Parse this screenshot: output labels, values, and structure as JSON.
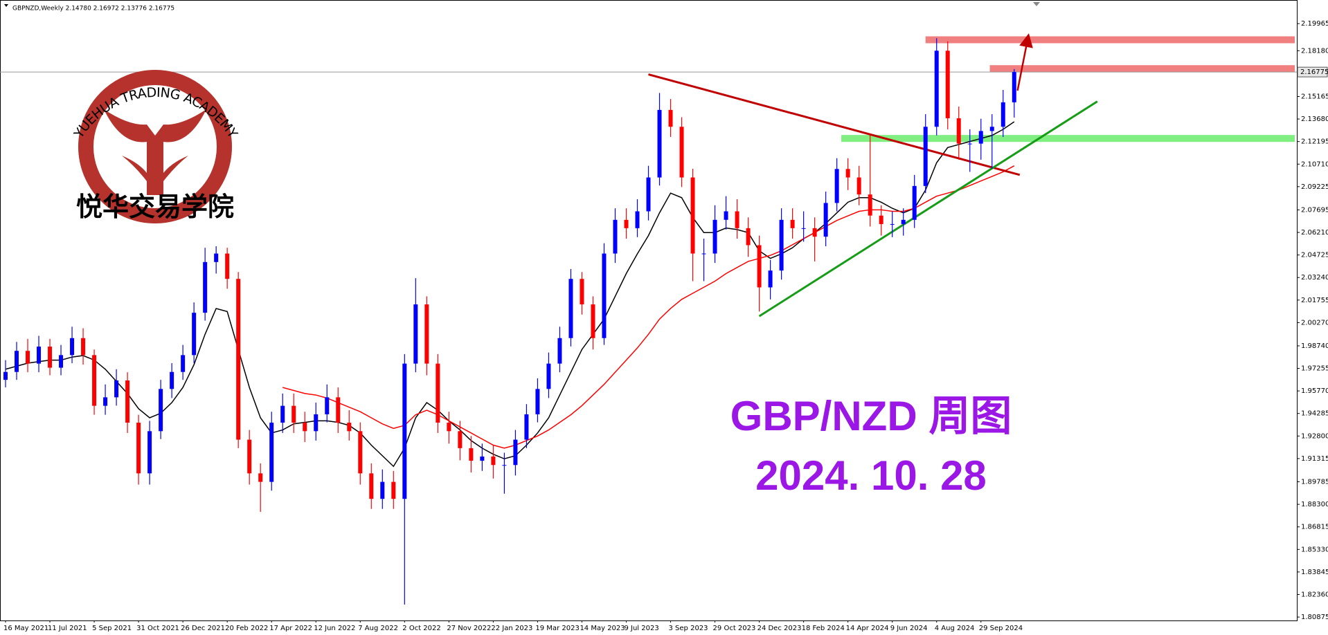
{
  "chart_data": {
    "type": "candlestick",
    "header": "GBPNZD,Weekly  2.14780 2.16972 2.13776 2.16775",
    "title": "GBP/NZD 周图",
    "subtitle": "2024. 10. 28",
    "categories": [
      "16 May 2021",
      null,
      null,
      null,
      "11 Jul 2021",
      null,
      null,
      null,
      "5 Sep 2021",
      null,
      null,
      null,
      "31 Oct 2021",
      null,
      null,
      null,
      "26 Dec 2021",
      null,
      null,
      null,
      "20 Feb 2022",
      null,
      null,
      null,
      "17 Apr 2022",
      null,
      null,
      null,
      "12 Jun 2022",
      null,
      null,
      null,
      "7 Aug 2022",
      null,
      null,
      null,
      "2 Oct 2022",
      null,
      null,
      null,
      "27 Nov 2022",
      null,
      null,
      null,
      "22 Jan 2023",
      null,
      null,
      null,
      "19 Mar 2023",
      null,
      null,
      null,
      "14 May 2023",
      null,
      null,
      null,
      "9 Jul 2023",
      null,
      null,
      null,
      "3 Sep 2023",
      null,
      null,
      null,
      "29 Oct 2023",
      null,
      null,
      null,
      "24 Dec 2023",
      null,
      null,
      null,
      "18 Feb 2024",
      null,
      null,
      null,
      "14 Apr 2024",
      null,
      null,
      null,
      "9 Jun 2024",
      null,
      null,
      null,
      "4 Aug 2024",
      null,
      null,
      null,
      "29 Sep 2024",
      null,
      null,
      null
    ],
    "open": [
      1.965,
      1.9702,
      1.9841,
      1.9757,
      1.9869,
      1.973,
      1.9813,
      1.9925,
      1.9813,
      1.9479,
      1.9535,
      1.9646,
      1.9368,
      1.9034,
      1.9312,
      1.959,
      1.9702,
      1.9813,
      2.0092,
      2.0426,
      2.0482,
      2.0315,
      1.9256,
      1.9034,
      1.8978,
      1.9368,
      1.9479,
      1.9368,
      1.9312,
      1.9423,
      1.9535,
      1.9368,
      1.9312,
      1.9034,
      1.8866,
      1.8978,
      1.8866,
      1.9757,
      2.0147,
      1.9757,
      1.9368,
      1.9312,
      1.92,
      1.9117,
      1.9145,
      1.9089,
      1.9089,
      1.9256,
      1.9423,
      1.959,
      1.9757,
      1.9925,
      2.0315,
      2.0147,
      1.9925,
      2.0482,
      2.0704,
      2.0649,
      2.076,
      2.0983,
      2.1428,
      2.1317,
      2.0983,
      2.0482,
      2.0482,
      2.0704,
      2.076,
      2.0649,
      2.0537,
      2.0259,
      2.037,
      2.0704,
      2.0649,
      2.0649,
      2.0593,
      2.0815,
      2.1039,
      2.0983,
      2.0871,
      2.0732,
      2.0676,
      2.0676,
      2.0704,
      2.0927,
      2.1317,
      2.1818,
      2.1373,
      2.1206,
      2.1206,
      2.1289,
      2.1317,
      2.1478
    ],
    "high": [
      1.978,
      1.99,
      1.992,
      1.994,
      1.992,
      1.988,
      2.0,
      1.999,
      1.985,
      1.962,
      1.972,
      1.97,
      1.942,
      1.938,
      1.965,
      1.976,
      1.988,
      2.016,
      2.052,
      2.053,
      2.052,
      2.036,
      1.932,
      1.91,
      1.944,
      1.956,
      1.956,
      1.944,
      1.95,
      1.962,
      1.96,
      1.945,
      1.937,
      1.91,
      1.906,
      1.905,
      1.982,
      2.032,
      2.02,
      1.982,
      1.944,
      1.938,
      1.928,
      1.923,
      1.922,
      1.917,
      1.932,
      1.949,
      1.966,
      1.983,
      2.0,
      2.038,
      2.036,
      2.02,
      2.055,
      2.078,
      2.078,
      2.084,
      2.106,
      2.154,
      2.15,
      2.138,
      2.104,
      2.058,
      2.08,
      2.086,
      2.084,
      2.072,
      2.06,
      2.044,
      2.078,
      2.078,
      2.076,
      2.072,
      2.089,
      2.111,
      2.111,
      2.106,
      2.126,
      2.08,
      2.076,
      2.078,
      2.1,
      2.14,
      2.19,
      2.188,
      2.145,
      2.13,
      2.137,
      2.14,
      2.156,
      2.16972
    ],
    "low": [
      1.96,
      1.965,
      1.97,
      1.97,
      1.968,
      1.968,
      1.976,
      1.975,
      1.942,
      1.942,
      1.948,
      1.93,
      1.896,
      1.896,
      1.926,
      1.953,
      1.965,
      1.976,
      2.004,
      2.035,
      2.025,
      1.92,
      1.896,
      1.878,
      1.892,
      1.93,
      1.93,
      1.924,
      1.925,
      1.937,
      1.93,
      1.925,
      1.896,
      1.88,
      1.88,
      1.88,
      1.817,
      1.97,
      1.968,
      1.93,
      1.923,
      1.912,
      1.904,
      1.905,
      1.9,
      1.89,
      1.902,
      1.92,
      1.937,
      1.953,
      1.97,
      1.987,
      2.008,
      1.985,
      1.988,
      2.042,
      2.058,
      2.059,
      2.07,
      2.093,
      2.125,
      2.092,
      2.03,
      2.03,
      2.042,
      2.064,
      2.058,
      2.046,
      2.01,
      2.018,
      2.031,
      2.058,
      2.056,
      2.043,
      2.053,
      2.076,
      2.09,
      2.08,
      2.066,
      2.06,
      2.059,
      2.06,
      2.065,
      2.088,
      2.126,
      2.13,
      2.11,
      2.102,
      2.11,
      2.104,
      2.125,
      2.13776
    ],
    "close": [
      1.9702,
      1.9841,
      1.9757,
      1.9869,
      1.973,
      1.9813,
      1.9925,
      1.9813,
      1.9479,
      1.9535,
      1.9646,
      1.9368,
      1.9034,
      1.9312,
      1.959,
      1.9702,
      1.9813,
      2.0092,
      2.0426,
      2.0482,
      2.0315,
      1.9256,
      1.9034,
      1.8978,
      1.9368,
      1.9479,
      1.9368,
      1.9312,
      1.9423,
      1.9535,
      1.9368,
      1.9312,
      1.9034,
      1.8866,
      1.8978,
      1.8866,
      1.9757,
      2.0147,
      1.9757,
      1.9368,
      1.9312,
      1.92,
      1.9117,
      1.9145,
      1.9089,
      1.9089,
      1.9256,
      1.9423,
      1.959,
      1.9757,
      1.9925,
      2.0315,
      2.0147,
      1.9925,
      2.0482,
      2.0704,
      2.0649,
      2.076,
      2.0983,
      2.1428,
      2.1317,
      2.0983,
      2.0482,
      2.0482,
      2.0704,
      2.076,
      2.0649,
      2.0537,
      2.0259,
      2.037,
      2.0704,
      2.0649,
      2.0649,
      2.0593,
      2.0815,
      2.1039,
      2.0983,
      2.0871,
      2.0732,
      2.0676,
      2.0676,
      2.0704,
      2.0927,
      2.1317,
      2.1818,
      2.1373,
      2.1206,
      2.1206,
      2.1289,
      2.1317,
      2.1478,
      2.16775
    ],
    "up_color": "#0000ff",
    "down_color": "#ff0000",
    "moving_averages": [
      {
        "color": "#000000",
        "values": [
          1.972,
          1.974,
          1.976,
          1.977,
          1.978,
          1.978,
          1.98,
          1.981,
          1.978,
          1.972,
          1.964,
          1.956,
          1.946,
          1.94,
          1.943,
          1.95,
          1.96,
          1.975,
          1.995,
          2.012,
          2.01,
          1.985,
          1.96,
          1.94,
          1.93,
          1.932,
          1.936,
          1.937,
          1.938,
          1.938,
          1.937,
          1.935,
          1.93,
          1.922,
          1.915,
          1.908,
          1.92,
          1.94,
          1.95,
          1.945,
          1.938,
          1.932,
          1.925,
          1.92,
          1.916,
          1.913,
          1.915,
          1.922,
          1.93,
          1.94,
          1.955,
          1.97,
          1.985,
          1.995,
          2.005,
          2.02,
          2.035,
          2.048,
          2.06,
          2.075,
          2.088,
          2.085,
          2.072,
          2.062,
          2.062,
          2.065,
          2.064,
          2.062,
          2.05,
          2.045,
          2.048,
          2.052,
          2.058,
          2.062,
          2.068,
          2.075,
          2.082,
          2.085,
          2.085,
          2.082,
          2.078,
          2.075,
          2.078,
          2.09,
          2.108,
          2.118,
          2.12,
          2.122,
          2.124,
          2.126,
          2.13,
          2.135
        ]
      },
      {
        "color": "#ff0000",
        "values": [
          null,
          null,
          null,
          null,
          null,
          null,
          null,
          null,
          null,
          null,
          null,
          null,
          null,
          null,
          null,
          null,
          null,
          null,
          null,
          null,
          null,
          null,
          null,
          null,
          null,
          1.96,
          1.958,
          1.956,
          1.955,
          1.953,
          1.95,
          1.947,
          1.944,
          1.94,
          1.936,
          1.933,
          1.935,
          1.942,
          1.945,
          1.942,
          1.938,
          1.934,
          1.93,
          1.926,
          1.922,
          1.92,
          1.922,
          1.925,
          1.928,
          1.932,
          1.937,
          1.942,
          1.948,
          1.955,
          1.962,
          1.97,
          1.978,
          1.986,
          1.995,
          2.005,
          2.012,
          2.018,
          2.022,
          2.026,
          2.03,
          2.035,
          2.039,
          2.043,
          2.045,
          2.047,
          2.05,
          2.054,
          2.058,
          2.062,
          2.066,
          2.07,
          2.073,
          2.076,
          2.077,
          2.077,
          2.076,
          2.076,
          2.078,
          2.082,
          2.086,
          2.088,
          2.09,
          2.093,
          2.096,
          2.099,
          2.102,
          2.106
        ]
      }
    ],
    "trendlines": [
      {
        "color": "#c00000",
        "x": [
          58,
          91.5
        ],
        "y": [
          2.1662,
          2.1
        ]
      },
      {
        "color": "#169c16",
        "x": [
          68,
          98.5
        ],
        "y": [
          2.0069,
          2.1484
        ]
      }
    ],
    "levels": [
      {
        "value": 2.189,
        "color": "#f08080",
        "x_start": 83
      },
      {
        "value": 2.17,
        "color": "#f08080",
        "x_start": 88.8
      },
      {
        "value": 2.124,
        "color": "#80ee80",
        "x_start": 75.4
      }
    ],
    "arrow": {
      "color": "#c00000",
      "x": [
        91.3,
        92.2
      ],
      "y": [
        2.1555,
        2.1888
      ]
    },
    "last_price": {
      "value": 2.16775,
      "label": "2.16775"
    },
    "ylim": [
      1.8065,
      2.2152
    ],
    "yticks": [
      2.19965,
      {
        "value": 2.1818,
        "label": "2.18180"
      },
      2.15165,
      {
        "value": 2.1368,
        "label": "2.13680"
      },
      2.12195,
      {
        "value": 2.1071,
        "label": "2.10710"
      },
      2.09225,
      2.07695,
      {
        "value": 2.0621,
        "label": "2.06210"
      },
      2.04725,
      {
        "value": 2.0324,
        "label": "2.03240"
      },
      2.01755,
      {
        "value": 2.0027,
        "label": "2.00270"
      },
      {
        "value": 1.9874,
        "label": "1.98740"
      },
      1.97255,
      {
        "value": 1.9577,
        "label": "1.95770"
      },
      1.94285,
      {
        "value": 1.928,
        "label": "1.92800"
      },
      1.91315,
      1.89785,
      {
        "value": 1.883,
        "label": "1.88300"
      },
      1.86815,
      {
        "value": 1.8533,
        "label": "1.85330"
      },
      1.83845,
      {
        "value": 1.8236,
        "label": "1.82360"
      },
      1.80875
    ],
    "grid": false
  },
  "logo": {
    "arc_text": "YUEHUA TRADING ACADEMY",
    "text": "悦华交易学院"
  }
}
